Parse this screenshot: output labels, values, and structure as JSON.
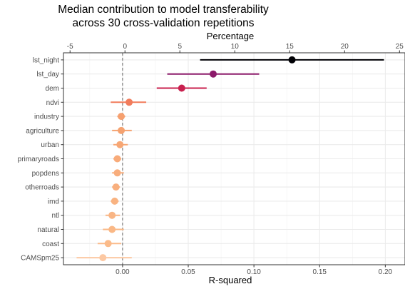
{
  "chart_data": {
    "type": "scatter",
    "title_lines": [
      "Median contribution to model transferability",
      "across 30 cross-validation repetitions"
    ],
    "xlabel": "R-squared",
    "x2label": "Percentage",
    "xlim": [
      -0.045,
      0.215
    ],
    "xticks": [
      0.0,
      0.05,
      0.1,
      0.15,
      0.2
    ],
    "xtick_labels": [
      "0.00",
      "0.05",
      "0.10",
      "0.15",
      "0.20"
    ],
    "x2lim": [
      -5.6,
      25.5
    ],
    "x2ticks": [
      -5,
      0,
      5,
      10,
      15,
      20,
      25
    ],
    "x2tick_labels": [
      "-5",
      "0",
      "5",
      "10",
      "15",
      "20",
      "25"
    ],
    "reference_line_x": 0.0,
    "grid": true,
    "categories": [
      "lst_night",
      "lst_day",
      "dem",
      "ndvi",
      "industry",
      "agriculture",
      "urban",
      "primaryroads",
      "popdens",
      "otherroads",
      "imd",
      "ntl",
      "natural",
      "coast",
      "CAMSpm25"
    ],
    "median": [
      0.129,
      0.069,
      0.045,
      0.005,
      -0.001,
      -0.001,
      -0.002,
      -0.004,
      -0.004,
      -0.005,
      -0.006,
      -0.008,
      -0.008,
      -0.011,
      -0.015
    ],
    "lower": [
      0.059,
      0.034,
      0.026,
      -0.009,
      -0.004,
      -0.008,
      -0.007,
      -0.007,
      -0.008,
      -0.008,
      -0.009,
      -0.013,
      -0.015,
      -0.019,
      -0.035
    ],
    "upper": [
      0.199,
      0.104,
      0.064,
      0.018,
      0.002,
      0.007,
      0.004,
      -0.001,
      0.001,
      -0.002,
      -0.003,
      -0.002,
      0.001,
      -0.001,
      0.007
    ],
    "colors": [
      "#000004",
      "#8c1a6a",
      "#c8204e",
      "#f17c5c",
      "#f6a06f",
      "#f5a270",
      "#f7a775",
      "#f8ab7a",
      "#f8ad7c",
      "#f8af7e",
      "#f9b381",
      "#f9b584",
      "#fab886",
      "#fbbb8a",
      "#fcc8a2"
    ]
  }
}
